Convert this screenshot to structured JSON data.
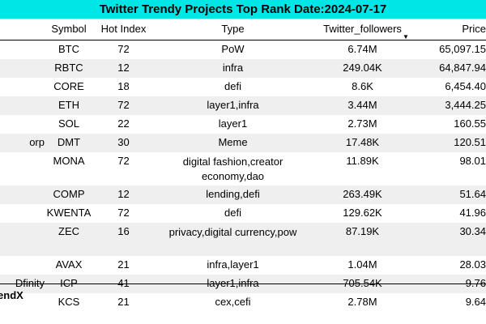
{
  "title": "Twitter Trendy Projects Top Rank Date:2024-07-17",
  "columns": {
    "symbol": "Symbol",
    "hot_index": "Hot Index",
    "type": "Type",
    "twitter_followers": "Twitter_followers",
    "price": "Price"
  },
  "sort": {
    "column": "twitter_followers",
    "indicator": "▼"
  },
  "rows": [
    {
      "name": "",
      "symbol": "BTC",
      "hot": "72",
      "type": "PoW",
      "followers": "6.74M",
      "price": "65,097.15"
    },
    {
      "name": "",
      "symbol": "RBTC",
      "hot": "12",
      "type": "infra",
      "followers": "249.04K",
      "price": "64,847.94"
    },
    {
      "name": "",
      "symbol": "CORE",
      "hot": "18",
      "type": "defi",
      "followers": "8.6K",
      "price": "6,454.40"
    },
    {
      "name": "",
      "symbol": "ETH",
      "hot": "72",
      "type": "layer1,infra",
      "followers": "3.44M",
      "price": "3,444.25"
    },
    {
      "name": "",
      "symbol": "SOL",
      "hot": "22",
      "type": "layer1",
      "followers": "2.73M",
      "price": "160.55"
    },
    {
      "name": "orp",
      "symbol": "DMT",
      "hot": "30",
      "type": "Meme",
      "followers": "17.48K",
      "price": "120.51"
    },
    {
      "name": "",
      "symbol": "MONA",
      "hot": "72",
      "type": "digital fashion,creator economy,dao",
      "followers": "11.89K",
      "price": "98.01"
    },
    {
      "name": "",
      "symbol": "COMP",
      "hot": "12",
      "type": "lending,defi",
      "followers": "263.49K",
      "price": "51.64"
    },
    {
      "name": "",
      "symbol": "KWENTA",
      "hot": "72",
      "type": "defi",
      "followers": "129.62K",
      "price": "41.96"
    },
    {
      "name": "",
      "symbol": "ZEC",
      "hot": "16",
      "type": "privacy,digital currency,pow",
      "followers": "87.19K",
      "price": "30.34"
    },
    {
      "name": "",
      "symbol": "AVAX",
      "hot": "21",
      "type": "infra,layer1",
      "followers": "1.04M",
      "price": "28.03"
    },
    {
      "name": "Dfinity",
      "symbol": "ICP",
      "hot": "41",
      "type": "layer1,infra",
      "followers": "705.54K",
      "price": "9.76"
    },
    {
      "name": "",
      "symbol": "KCS",
      "hot": "21",
      "type": "cex,cefi",
      "followers": "2.78M",
      "price": "9.64"
    }
  ],
  "footer": "rendX"
}
